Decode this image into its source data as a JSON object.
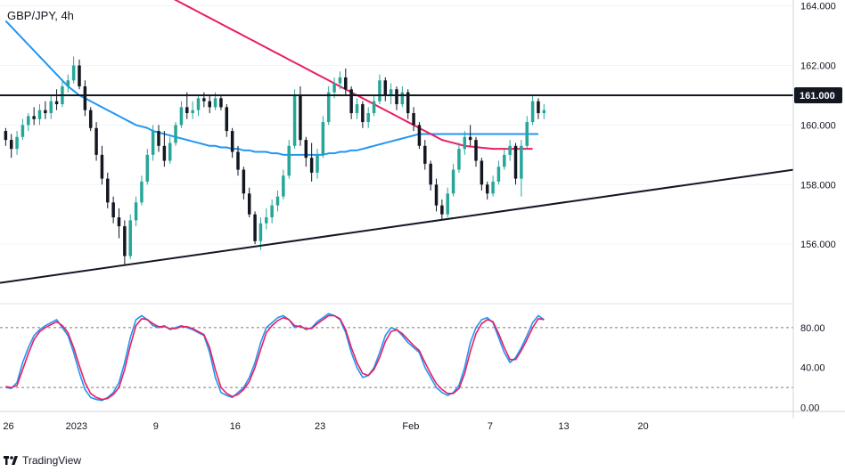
{
  "header": {
    "title": "GBP/JPY, 4h"
  },
  "footer": {
    "brand": "TradingView"
  },
  "colors": {
    "up": "#26a69a",
    "down": "#131722",
    "ma_fast": "#2196f3",
    "ma_slow": "#e91e63",
    "stoch_k": "#2196f3",
    "stoch_d": "#e91e63",
    "price_badge_bg": "#131722"
  },
  "chart_data": [
    {
      "type": "candlestick",
      "title": "GBP/JPY, 4h",
      "y_ticks": [
        "164.000",
        "162.000",
        "160.000",
        "158.000",
        "156.000"
      ],
      "y_tick_values": [
        164,
        162,
        160,
        158,
        156
      ],
      "ylim": [
        154.0,
        164.2
      ],
      "x_ticks": [
        "26",
        "2023",
        "9",
        "16",
        "23",
        "Feb",
        "7",
        "13",
        "20"
      ],
      "x_tick_positions": [
        0.5,
        12.5,
        26.5,
        40.5,
        55.5,
        71.5,
        85.5,
        98.5,
        112.5
      ],
      "x_range": [
        -1,
        139
      ],
      "price_label": "161.000",
      "horizontal_level": 161.0,
      "trendline": {
        "start": {
          "x": -1,
          "y": 154.7
        },
        "end": {
          "x": 139,
          "y": 158.5
        }
      },
      "ohlc": [
        [
          159.8,
          159.9,
          159.3,
          159.5
        ],
        [
          159.5,
          159.7,
          158.9,
          159.2
        ],
        [
          159.2,
          159.8,
          159.0,
          159.6
        ],
        [
          159.6,
          160.2,
          159.5,
          160.0
        ],
        [
          160.0,
          160.4,
          159.8,
          160.3
        ],
        [
          160.3,
          160.6,
          160.0,
          160.2
        ],
        [
          160.2,
          160.7,
          160.0,
          160.5
        ],
        [
          160.5,
          160.8,
          160.2,
          160.4
        ],
        [
          160.4,
          161.0,
          160.2,
          160.8
        ],
        [
          160.8,
          161.2,
          160.5,
          160.7
        ],
        [
          160.7,
          161.5,
          160.6,
          161.3
        ],
        [
          161.3,
          161.7,
          161.1,
          161.5
        ],
        [
          161.5,
          162.3,
          161.4,
          162.0
        ],
        [
          162.0,
          162.2,
          161.2,
          161.3
        ],
        [
          161.3,
          161.5,
          160.3,
          160.5
        ],
        [
          160.5,
          160.6,
          159.8,
          159.9
        ],
        [
          159.9,
          160.1,
          158.8,
          159.0
        ],
        [
          159.0,
          159.3,
          158.0,
          158.2
        ],
        [
          158.2,
          158.4,
          157.2,
          157.4
        ],
        [
          157.4,
          157.6,
          156.7,
          156.9
        ],
        [
          156.9,
          157.2,
          156.2,
          156.6
        ],
        [
          156.6,
          156.8,
          155.3,
          155.6
        ],
        [
          155.6,
          157.0,
          155.5,
          156.8
        ],
        [
          156.8,
          157.6,
          156.6,
          157.4
        ],
        [
          157.4,
          158.3,
          157.3,
          158.1
        ],
        [
          158.1,
          159.2,
          158.0,
          159.0
        ],
        [
          159.0,
          160.0,
          158.8,
          159.8
        ],
        [
          159.8,
          160.0,
          159.1,
          159.3
        ],
        [
          159.3,
          159.8,
          158.6,
          158.8
        ],
        [
          158.8,
          159.6,
          158.7,
          159.4
        ],
        [
          159.4,
          160.1,
          159.3,
          160.0
        ],
        [
          160.0,
          160.8,
          159.9,
          160.6
        ],
        [
          160.6,
          161.1,
          160.2,
          160.4
        ],
        [
          160.4,
          160.8,
          160.2,
          160.5
        ],
        [
          160.5,
          161.0,
          160.3,
          160.9
        ],
        [
          160.9,
          161.1,
          160.6,
          160.8
        ],
        [
          160.8,
          161.0,
          160.4,
          160.6
        ],
        [
          160.6,
          161.1,
          160.5,
          160.9
        ],
        [
          160.9,
          161.0,
          160.5,
          160.6
        ],
        [
          160.6,
          160.7,
          159.6,
          159.8
        ],
        [
          159.8,
          159.9,
          158.9,
          159.1
        ],
        [
          159.1,
          159.3,
          158.3,
          158.5
        ],
        [
          158.5,
          158.6,
          157.5,
          157.7
        ],
        [
          157.7,
          157.9,
          156.9,
          157.0
        ],
        [
          157.0,
          157.1,
          156.0,
          156.1
        ],
        [
          156.1,
          156.9,
          155.8,
          156.7
        ],
        [
          156.7,
          157.2,
          156.5,
          156.9
        ],
        [
          156.9,
          157.5,
          156.7,
          157.3
        ],
        [
          157.3,
          157.8,
          157.1,
          157.6
        ],
        [
          157.6,
          158.5,
          157.5,
          158.3
        ],
        [
          158.3,
          159.5,
          158.2,
          159.3
        ],
        [
          159.3,
          161.2,
          159.2,
          161.0
        ],
        [
          161.0,
          161.3,
          159.3,
          159.5
        ],
        [
          159.5,
          159.6,
          158.6,
          158.9
        ],
        [
          158.9,
          159.4,
          158.1,
          158.4
        ],
        [
          158.4,
          159.2,
          158.2,
          159.0
        ],
        [
          159.0,
          160.3,
          158.9,
          160.1
        ],
        [
          160.1,
          161.3,
          160.0,
          161.1
        ],
        [
          161.1,
          161.6,
          160.9,
          161.4
        ],
        [
          161.4,
          161.8,
          161.2,
          161.6
        ],
        [
          161.6,
          161.9,
          161.0,
          161.2
        ],
        [
          161.2,
          161.3,
          160.2,
          160.4
        ],
        [
          160.4,
          160.9,
          160.2,
          160.7
        ],
        [
          160.7,
          160.8,
          159.9,
          160.1
        ],
        [
          160.1,
          160.6,
          159.9,
          160.4
        ],
        [
          160.4,
          161.0,
          160.3,
          160.8
        ],
        [
          160.8,
          161.7,
          160.7,
          161.5
        ],
        [
          161.5,
          161.6,
          160.8,
          161.0
        ],
        [
          161.0,
          161.4,
          160.7,
          161.2
        ],
        [
          161.2,
          161.3,
          160.5,
          160.7
        ],
        [
          160.7,
          161.3,
          160.6,
          161.1
        ],
        [
          161.1,
          161.2,
          160.2,
          160.4
        ],
        [
          160.4,
          160.6,
          159.8,
          160.0
        ],
        [
          160.0,
          160.1,
          159.2,
          159.3
        ],
        [
          159.3,
          159.5,
          158.5,
          158.7
        ],
        [
          158.7,
          158.8,
          157.8,
          158.0
        ],
        [
          158.0,
          158.2,
          157.1,
          157.3
        ],
        [
          157.3,
          157.5,
          156.8,
          157.0
        ],
        [
          157.0,
          157.9,
          156.9,
          157.7
        ],
        [
          157.7,
          158.7,
          157.6,
          158.5
        ],
        [
          158.5,
          159.4,
          158.4,
          159.2
        ],
        [
          159.2,
          159.8,
          159.0,
          159.6
        ],
        [
          159.6,
          160.0,
          159.3,
          159.5
        ],
        [
          159.5,
          159.6,
          158.6,
          158.8
        ],
        [
          158.8,
          158.9,
          157.8,
          158.0
        ],
        [
          158.0,
          158.1,
          157.5,
          157.7
        ],
        [
          157.7,
          158.3,
          157.6,
          158.1
        ],
        [
          158.1,
          158.8,
          158.0,
          158.6
        ],
        [
          158.6,
          159.2,
          158.5,
          159.0
        ],
        [
          159.0,
          159.5,
          158.8,
          159.3
        ],
        [
          159.3,
          159.4,
          158.0,
          158.2
        ],
        [
          158.2,
          159.5,
          157.6,
          159.3
        ],
        [
          159.3,
          160.3,
          159.2,
          160.1
        ],
        [
          160.1,
          161.0,
          160.0,
          160.8
        ],
        [
          160.8,
          160.9,
          160.2,
          160.4
        ],
        [
          160.4,
          160.7,
          160.2,
          160.5
        ]
      ],
      "ma_fast": [
        163.5,
        163.3,
        163.1,
        162.9,
        162.7,
        162.5,
        162.3,
        162.1,
        161.9,
        161.7,
        161.5,
        161.3,
        161.15,
        161.0,
        160.9,
        160.8,
        160.7,
        160.6,
        160.5,
        160.4,
        160.3,
        160.2,
        160.1,
        160.0,
        159.95,
        159.9,
        159.8,
        159.75,
        159.7,
        159.65,
        159.6,
        159.55,
        159.5,
        159.45,
        159.4,
        159.35,
        159.3,
        159.3,
        159.25,
        159.25,
        159.2,
        159.2,
        159.15,
        159.15,
        159.1,
        159.1,
        159.1,
        159.05,
        159.05,
        159.0,
        159.0,
        159.0,
        159.0,
        159.0,
        159.0,
        159.0,
        159.0,
        159.05,
        159.05,
        159.1,
        159.1,
        159.15,
        159.15,
        159.2,
        159.25,
        159.3,
        159.35,
        159.4,
        159.45,
        159.5,
        159.55,
        159.6,
        159.65,
        159.7,
        159.7,
        159.7,
        159.7,
        159.7,
        159.7,
        159.7,
        159.7,
        159.7,
        159.7,
        159.7,
        159.7,
        159.7,
        159.7,
        159.7,
        159.7,
        159.7,
        159.7,
        159.7,
        159.7,
        159.7,
        159.7
      ],
      "ma_slow": [
        164.7,
        164.6,
        164.5,
        164.4,
        164.3,
        164.2,
        164.1,
        164.0,
        163.9,
        163.8,
        163.7,
        163.6,
        163.5,
        163.4,
        163.3,
        163.2,
        163.1,
        163.0,
        162.9,
        162.8,
        162.7,
        162.6,
        162.5,
        162.4,
        162.3,
        162.2,
        162.1,
        162.0,
        161.9,
        161.8,
        161.7,
        161.6,
        161.5,
        161.4,
        161.3,
        161.2,
        161.1,
        161.0,
        160.9,
        160.8,
        160.7,
        160.6,
        160.5,
        160.4,
        160.3,
        160.2,
        160.1,
        160.0,
        159.9,
        159.8,
        159.7,
        159.6,
        159.5,
        159.45,
        159.4,
        159.35,
        159.3,
        159.28,
        159.26,
        159.24,
        159.22,
        159.2,
        159.2,
        159.2,
        159.2,
        159.2,
        159.2,
        159.2,
        159.2
      ],
      "ma_slow_start_index": 25
    },
    {
      "type": "line",
      "title": "",
      "y_ticks": [
        "80.00",
        "40.00",
        "0.00"
      ],
      "y_tick_values": [
        80,
        40,
        0
      ],
      "ylim": [
        -4,
        104
      ],
      "dashed_levels": [
        80,
        20
      ],
      "stoch_k": [
        20,
        19,
        25,
        45,
        60,
        72,
        78,
        82,
        85,
        88,
        80,
        72,
        55,
        35,
        18,
        10,
        8,
        7,
        10,
        15,
        25,
        45,
        70,
        88,
        92,
        88,
        82,
        80,
        82,
        78,
        80,
        82,
        80,
        78,
        75,
        72,
        55,
        30,
        15,
        12,
        10,
        15,
        20,
        30,
        45,
        65,
        80,
        85,
        90,
        92,
        88,
        80,
        82,
        78,
        80,
        86,
        90,
        94,
        92,
        88,
        75,
        55,
        40,
        30,
        32,
        40,
        55,
        72,
        80,
        78,
        72,
        65,
        60,
        55,
        40,
        30,
        20,
        15,
        12,
        15,
        22,
        40,
        65,
        80,
        88,
        90,
        85,
        70,
        55,
        45,
        50,
        60,
        72,
        85,
        92,
        88
      ],
      "stoch_d": [
        21,
        20,
        22,
        38,
        54,
        68,
        76,
        80,
        83,
        86,
        82,
        75,
        60,
        42,
        25,
        14,
        10,
        8,
        9,
        13,
        20,
        38,
        62,
        82,
        89,
        88,
        84,
        81,
        81,
        79,
        79,
        81,
        81,
        79,
        76,
        73,
        60,
        38,
        20,
        14,
        11,
        13,
        18,
        26,
        40,
        58,
        75,
        82,
        87,
        90,
        88,
        82,
        81,
        79,
        79,
        84,
        88,
        92,
        92,
        89,
        78,
        60,
        45,
        34,
        32,
        38,
        50,
        66,
        76,
        78,
        74,
        68,
        62,
        57,
        45,
        34,
        24,
        18,
        14,
        14,
        19,
        34,
        56,
        74,
        84,
        88,
        86,
        74,
        60,
        48,
        48,
        57,
        68,
        80,
        89,
        88
      ]
    }
  ]
}
